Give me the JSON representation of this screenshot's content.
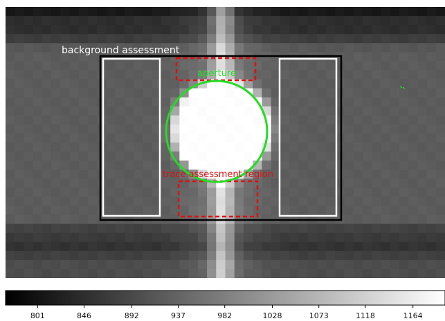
{
  "overlays": {
    "background_label": "background assessment",
    "aperture_label": "aperture",
    "trace_label": "trace assessment region"
  },
  "colorbar": {
    "min": 770,
    "max": 1195,
    "ticks": [
      "801",
      "846",
      "892",
      "937",
      "982",
      "1028",
      "1073",
      "1118",
      "1164"
    ]
  },
  "colors": {
    "background_box": "#000000",
    "background_subregions": "#ffffff",
    "aperture": "#22dd22",
    "trace_region": "#dd1111",
    "background_label": "#ffffff"
  }
}
